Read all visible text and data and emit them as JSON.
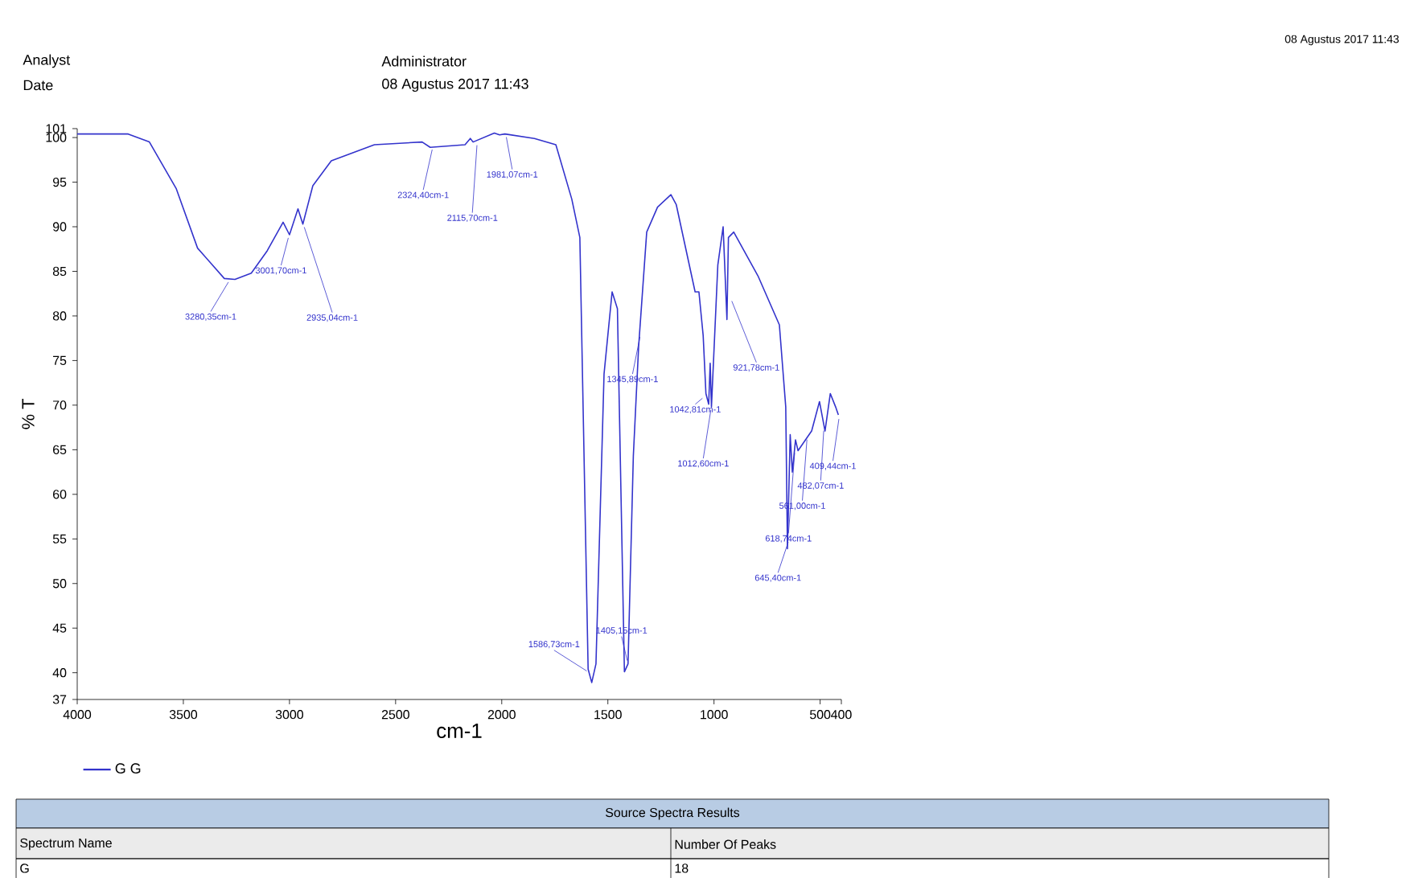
{
  "chart_data": {
    "type": "line",
    "xlabel": "cm-1",
    "ylabel": "% T",
    "xlim": [
      4000,
      400
    ],
    "ylim": [
      37,
      101
    ],
    "xticks": [
      4000,
      3500,
      3000,
      2500,
      2000,
      1500,
      1000,
      500,
      400
    ],
    "yticks": [
      37,
      40,
      45,
      50,
      55,
      60,
      65,
      70,
      75,
      80,
      85,
      90,
      95,
      100,
      101
    ],
    "legend": "bottom left",
    "series": [
      {
        "name": "G G",
        "color": "#3333cc",
        "x": [
          4000,
          3760,
          3660,
          3534,
          3433,
          3307,
          3257,
          3180,
          3105,
          3030,
          3000,
          2960,
          2937,
          2890,
          2803,
          2600,
          2375,
          2337,
          2173,
          2148,
          2135,
          2035,
          2010,
          1985,
          1846,
          1745,
          1670,
          1632,
          1593,
          1576,
          1556,
          1518,
          1480,
          1455,
          1422,
          1405,
          1380,
          1355,
          1317,
          1266,
          1203,
          1178,
          1089,
          1071,
          1051,
          1038,
          1025,
          1018,
          1012,
          982,
          957,
          939,
          932,
          907,
          793,
          692,
          662,
          654,
          641,
          631,
          616,
          604,
          578,
          540,
          503,
          477,
          452,
          427,
          414
        ],
        "values": [
          100.4,
          100.4,
          99.5,
          94.3,
          87.6,
          84.2,
          84.1,
          84.8,
          87.3,
          90.5,
          89.1,
          92,
          90.3,
          94.6,
          97.4,
          99.2,
          99.5,
          98.9,
          99.2,
          99.9,
          99.5,
          100.5,
          100.3,
          100.4,
          99.9,
          99.2,
          93.1,
          88.8,
          40.4,
          38.9,
          41,
          73.5,
          82.7,
          80.8,
          40.1,
          41,
          64.3,
          76.6,
          89.4,
          92.2,
          93.6,
          92.5,
          82.7,
          82.7,
          77.8,
          71.3,
          70.1,
          74.7,
          69.8,
          85.7,
          90,
          79.6,
          88.8,
          89.4,
          84.5,
          79,
          69.8,
          53.9,
          66.7,
          62.5,
          66.1,
          64.9,
          65.8,
          67.1,
          70.4,
          67.1,
          71.3,
          69.8,
          68.9
        ]
      }
    ],
    "annotations": [
      "Analyst",
      "Administrator",
      "Date",
      "08 Agustus 2017 11:43",
      "08 Agustus 2017 11:43",
      "Source Spectra Results",
      "Spectrum Name",
      "Number Of Peaks",
      "G",
      "18",
      {
        "text": "3280,35cm-1",
        "x": 3280,
        "y": 84.1
      },
      {
        "text": "3001,70cm-1",
        "x": 3001.7,
        "y": 89.1
      },
      {
        "text": "2935,04cm-1",
        "x": 2935.04,
        "y": 90.3
      },
      {
        "text": "2324,40cm-1",
        "x": 2324.4,
        "y": 99
      },
      {
        "text": "2115,70cm-1",
        "x": 2115.7,
        "y": 99.5
      },
      {
        "text": "1981,07cm-1",
        "x": 1981.07,
        "y": 100.4
      },
      {
        "text": "1586,73cm-1",
        "x": 1586.73,
        "y": 40
      },
      {
        "text": "1405,15cm-1",
        "x": 1405.15,
        "y": 41
      },
      {
        "text": "1345,89cm-1",
        "x": 1345.89,
        "y": 78
      },
      {
        "text": "921,78cm-1",
        "x": 921.78,
        "y": 82
      },
      {
        "text": "1042,81cm-1",
        "x": 1042.81,
        "y": 71
      },
      {
        "text": "1012,60cm-1",
        "x": 1012.6,
        "y": 69.8
      },
      {
        "text": "561,00cm-1",
        "x": 561,
        "y": 66.5
      },
      {
        "text": "482,07cm-1",
        "x": 482.07,
        "y": 67.5
      },
      {
        "text": "409,44cm-1",
        "x": 409.44,
        "y": 68.8
      },
      {
        "text": "618,74cm-1",
        "x": 618.74,
        "y": 65
      },
      {
        "text": "645,40cm-1",
        "x": 645.4,
        "y": 55
      }
    ]
  }
}
